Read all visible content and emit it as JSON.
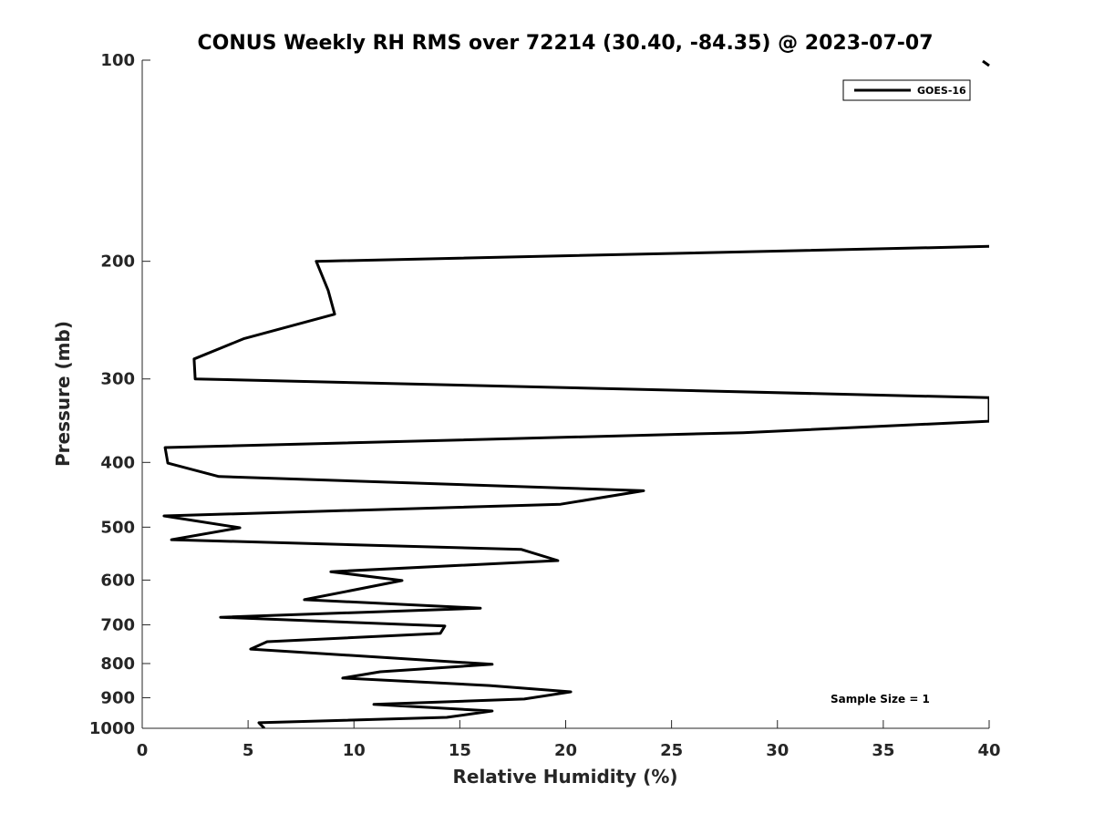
{
  "chart_data": {
    "type": "line",
    "title": "CONUS Weekly RH RMS over 72214 (30.40, -84.35) @ 2023-07-07",
    "xlabel": "Relative Humidity (%)",
    "ylabel": "Pressure (mb)",
    "xlim": [
      0,
      40
    ],
    "ylim": [
      100,
      1000
    ],
    "yscale": "log",
    "yreversed": true,
    "xticks": [
      "0",
      "5",
      "10",
      "15",
      "20",
      "25",
      "30",
      "35",
      "40"
    ],
    "yticks": [
      "100",
      "200",
      "300",
      "400",
      "500",
      "600",
      "700",
      "800",
      "900",
      "1000"
    ],
    "grid": false,
    "legend": {
      "placement": "top-right",
      "entries": [
        "GOES-16"
      ]
    },
    "annotation": "Sample Size = 1",
    "series": [
      {
        "name": "GOES-16",
        "color": "#000000",
        "points": [
          [
            5.77,
            1000
          ],
          [
            5.51,
            981
          ],
          [
            14.38,
            963
          ],
          [
            16.53,
            942
          ],
          [
            10.94,
            921
          ],
          [
            18.04,
            904
          ],
          [
            20.24,
            882
          ],
          [
            16.4,
            863
          ],
          [
            9.47,
            841
          ],
          [
            11.24,
            823
          ],
          [
            16.53,
            802
          ],
          [
            5.12,
            761
          ],
          [
            5.9,
            742
          ],
          [
            14.08,
            721
          ],
          [
            14.29,
            703
          ],
          [
            3.7,
            682
          ],
          [
            15.97,
            661
          ],
          [
            7.66,
            642
          ],
          [
            12.27,
            601
          ],
          [
            8.91,
            583
          ],
          [
            19.63,
            561
          ],
          [
            17.91,
            540
          ],
          [
            1.38,
            522
          ],
          [
            4.61,
            501
          ],
          [
            1.03,
            481
          ],
          [
            19.76,
            462
          ],
          [
            23.68,
            441
          ],
          [
            3.62,
            420
          ],
          [
            1.21,
            401
          ],
          [
            1.08,
            380
          ],
          [
            28.37,
            361
          ],
          [
            40,
            347
          ],
          [
            40,
            320
          ],
          [
            2.5,
            300
          ],
          [
            2.45,
            280
          ],
          [
            4.82,
            261
          ],
          [
            9.09,
            240
          ],
          [
            8.78,
            221
          ],
          [
            8.22,
            200
          ],
          [
            40,
            190
          ]
        ]
      }
    ]
  }
}
